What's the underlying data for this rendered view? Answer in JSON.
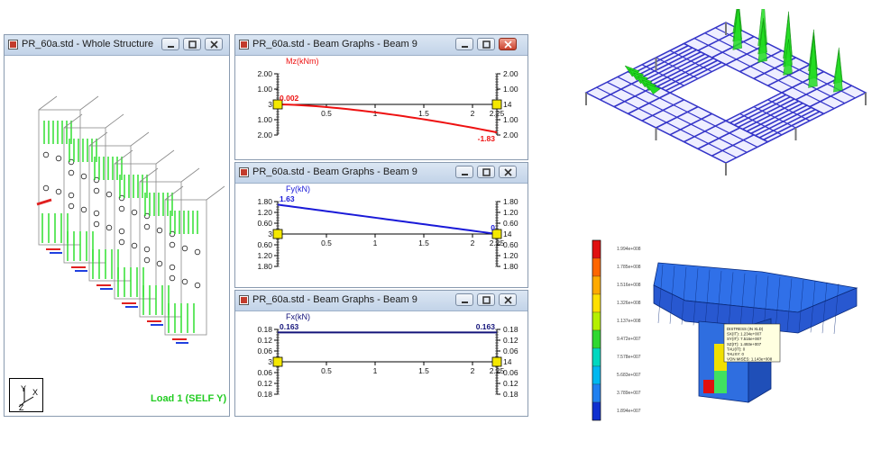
{
  "windows": {
    "whole": {
      "title": "PR_60a.std - Whole Structure",
      "load_label": "Load 1 (SELF Y)",
      "axis": {
        "y": "Y",
        "x": "X",
        "z": "Z"
      }
    },
    "mz": {
      "title": "PR_60a.std - Beam Graphs - Beam 9",
      "graph": {
        "label": "Mz(kNm)",
        "left_ticks": [
          "2.00",
          "1.00",
          "3",
          "1.00",
          "2.00"
        ],
        "right_ticks": [
          "2.00",
          "1.00",
          "14",
          "1.00",
          "2.00"
        ],
        "x_ticks": [
          "0.5",
          "1",
          "1.5",
          "2",
          "2.25"
        ],
        "start_value": "0.002",
        "end_value": "-1.83"
      }
    },
    "fy": {
      "title": "PR_60a.std - Beam Graphs - Beam 9",
      "graph": {
        "label": "Fy(kN)",
        "left_ticks": [
          "1.80",
          "1.20",
          "0.60",
          "3",
          "0.60",
          "1.20",
          "1.80"
        ],
        "right_ticks": [
          "1.80",
          "1.20",
          "0.60",
          "14",
          "0.60",
          "1.20",
          "1.80"
        ],
        "x_ticks": [
          "0.5",
          "1",
          "1.5",
          "2",
          "2.25"
        ],
        "start_value": "1.63",
        "end_value": "0"
      }
    },
    "fx": {
      "title": "PR_60a.std - Beam Graphs - Beam 9",
      "graph": {
        "label": "Fx(kN)",
        "left_ticks": [
          "0.18",
          "0.12",
          "0.06",
          "3",
          "0.06",
          "0.12",
          "0.18"
        ],
        "right_ticks": [
          "0.18",
          "0.12",
          "0.06",
          "14",
          "0.06",
          "0.12",
          "0.18"
        ],
        "x_ticks": [
          "0.5",
          "1",
          "1.5",
          "2",
          "2.25"
        ],
        "start_value": "0.163",
        "end_value": "0.163"
      }
    }
  },
  "colors": {
    "mz_curve": "#ee1111",
    "fy_curve": "#1a1ad8",
    "fx_curve": "#13137a",
    "node_box": "#f4e800",
    "load_label": "#22cc22",
    "frame_blue": "#3434c8",
    "load_green": "#22dd22"
  },
  "stress_legend": {
    "labels": [
      "1.994e+008",
      "1.785e+008",
      "1.516e+008",
      "1.326e+008",
      "1.137e+008",
      "9.472e+007",
      "7.578e+007",
      "5.683e+007",
      "3.789e+007",
      "1.894e+007"
    ]
  },
  "stress_tooltip": {
    "lines": [
      "DISTRESS (IN XLD)",
      "SX(IT): 1.234e+007",
      "SY(IT): 7.516e+007",
      "SZ(IT): 1.493e+007",
      "TAU(IT): 0",
      "TAUXY: 0",
      "VON MISES: 1.143e+008"
    ]
  }
}
